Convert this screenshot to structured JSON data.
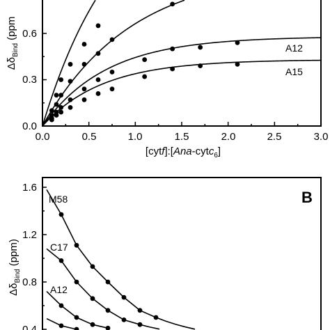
{
  "chart_data": [
    {
      "panel": "A",
      "type": "scatter",
      "xlabel": "[cytf]:[Ana-cytc6]",
      "xlabel_parts": {
        "open": "[cyt",
        "f": "f",
        "mid": "]:[",
        "ana": "Ana",
        "cyt": "-cyt",
        "c": "c",
        "sub": "6",
        "close": "]"
      },
      "ylabel": "ΔδBind (ppm)",
      "ylabel_parts": {
        "delta": "Δδ",
        "sub": "Bind",
        "rest": " (ppm"
      },
      "xlim": [
        0,
        3.0
      ],
      "ylim": [
        0,
        1.2
      ],
      "xticks": [
        "0.0",
        "0.5",
        "1.0",
        "1.5",
        "2.0",
        "2.5",
        "3.0"
      ],
      "yticks": [
        "0.0",
        "0.3",
        "0.6"
      ],
      "series": [
        {
          "name": "",
          "bmax": 1.6,
          "k": 1.25,
          "points": [
            [
              0.1,
              0.1
            ],
            [
              0.15,
              0.2
            ],
            [
              0.2,
              0.3
            ],
            [
              0.3,
              0.4
            ],
            [
              0.45,
              0.53
            ],
            [
              0.6,
              0.65
            ]
          ]
        },
        {
          "name": "",
          "bmax": 1.02,
          "k": 1.05,
          "points": [
            [
              0.1,
              0.07
            ],
            [
              0.15,
              0.14
            ],
            [
              0.2,
              0.2
            ],
            [
              0.3,
              0.29
            ],
            [
              0.45,
              0.4
            ],
            [
              0.6,
              0.47
            ],
            [
              0.75,
              0.56
            ],
            [
              1.4,
              0.79
            ]
          ]
        },
        {
          "name": "A12",
          "bmax": 0.58,
          "k": 1.45,
          "points": [
            [
              0.1,
              0.05
            ],
            [
              0.15,
              0.09
            ],
            [
              0.2,
              0.12
            ],
            [
              0.3,
              0.17
            ],
            [
              0.45,
              0.24
            ],
            [
              0.6,
              0.3
            ],
            [
              0.75,
              0.35
            ],
            [
              1.1,
              0.43
            ],
            [
              1.4,
              0.5
            ],
            [
              1.7,
              0.51
            ],
            [
              2.1,
              0.54
            ]
          ]
        },
        {
          "name": "A15",
          "bmax": 0.43,
          "k": 1.55,
          "points": [
            [
              0.1,
              0.04
            ],
            [
              0.15,
              0.07
            ],
            [
              0.2,
              0.09
            ],
            [
              0.3,
              0.12
            ],
            [
              0.45,
              0.17
            ],
            [
              0.6,
              0.21
            ],
            [
              0.75,
              0.24
            ],
            [
              1.1,
              0.32
            ],
            [
              1.4,
              0.37
            ],
            [
              1.7,
              0.39
            ],
            [
              2.1,
              0.4
            ]
          ]
        }
      ]
    },
    {
      "panel": "B",
      "type": "scatter",
      "ylabel": "ΔδBind (ppm)",
      "ylabel_parts": {
        "delta": "Δδ",
        "sub": "Bind",
        "rest": " (ppm)"
      },
      "ylim": [
        0.4,
        1.7
      ],
      "yticks": [
        "1.6",
        "1.2",
        "0.8",
        "0.4"
      ],
      "panel_letter": "B",
      "series": [
        {
          "name": "M58",
          "points": [
            [
              0,
              1.37
            ],
            [
              1,
              1.11
            ],
            [
              2,
              0.93
            ],
            [
              3,
              0.8
            ],
            [
              4,
              0.67
            ],
            [
              5,
              0.56
            ],
            [
              6,
              0.5
            ]
          ]
        },
        {
          "name": "C17",
          "points": [
            [
              0,
              0.98
            ],
            [
              1,
              0.8
            ],
            [
              2,
              0.66
            ],
            [
              3,
              0.56
            ],
            [
              4,
              0.48
            ],
            [
              5,
              0.44
            ]
          ]
        },
        {
          "name": "A12",
          "points": [
            [
              0,
              0.6
            ],
            [
              1,
              0.5
            ],
            [
              2,
              0.44
            ],
            [
              3,
              0.41
            ]
          ]
        },
        {
          "name": "",
          "points": [
            [
              0,
              0.43
            ],
            [
              1,
              0.4
            ]
          ]
        }
      ]
    }
  ]
}
